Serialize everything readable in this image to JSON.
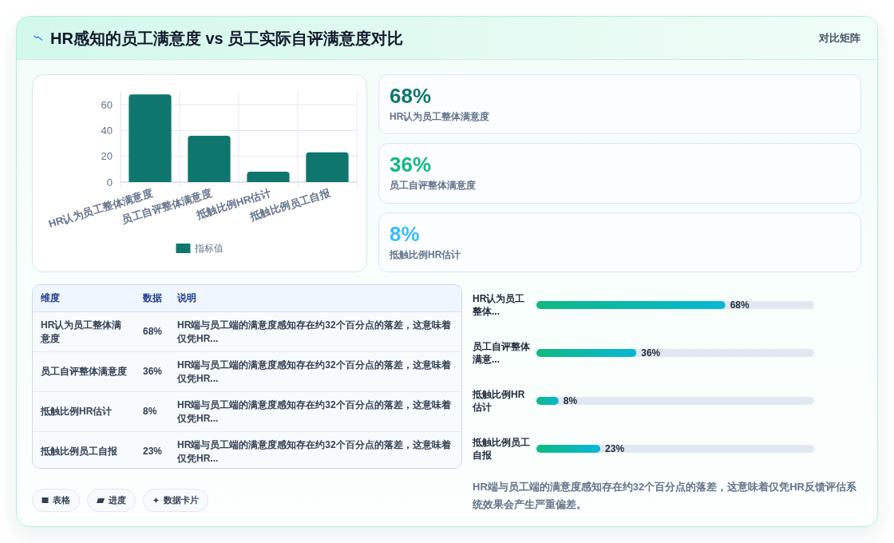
{
  "chart_data": [
    {
      "type": "other",
      "title": "HR感知的员工满意度 vs 员工实际自评满意度对比",
      "subtitle": "对比矩阵"
    },
    {
      "type": "bar",
      "categories": [
        "HR认为员工整体满意度",
        "员工自评整体满意度",
        "抵触比例HR估计",
        "抵触比例员工自报"
      ],
      "series": [
        {
          "name": "指标值",
          "color": "#0f766e",
          "values": [
            68,
            36,
            8,
            23
          ]
        }
      ],
      "ylim": [
        0,
        70
      ],
      "yticks": [
        0,
        20,
        40,
        60
      ],
      "grid": true,
      "legend": "bottom"
    },
    {
      "type": "other",
      "categories": [
        "HR认为员工整体满意度",
        "员工自评整体满意度",
        "抵触比例HR估计"
      ],
      "value_labels": [
        "68%",
        "36%",
        "8%"
      ]
    },
    {
      "type": "other",
      "categories": [
        "HR认为员工整体满意度",
        "员工自评整体满意度",
        "抵触比例HR估计",
        "抵触比例员工自报"
      ],
      "value_labels": [
        "68%",
        "36%",
        "8%",
        "23%"
      ],
      "annotations": [
        "维度",
        "数据",
        "说明",
        "HR端与员工端的满意度感知存在约32个百分点的落差，这意味着仅凭HR...",
        "HR端与员工端的满意度感知存在约32个百分点的落差，这意味着仅凭HR...",
        "HR端与员工端的满意度感知存在约32个百分点的落差，这意味着仅凭HR...",
        "HR端与员工端的满意度感知存在约32个百分点的落差，这意味着仅凭HR..."
      ]
    },
    {
      "type": "bar",
      "orientation": "horizontal",
      "categories": [
        "HR认为员工整体...",
        "员工自评整体满意...",
        "抵触比例HR估计",
        "抵触比例员工自报"
      ],
      "values": [
        68,
        36,
        8,
        23
      ],
      "value_labels": [
        "68%",
        "36%",
        "8%",
        "23%"
      ],
      "color": "#10b981",
      "xlim": [
        0,
        100
      ],
      "tick_labels": "y",
      "annotations": [
        "HR端与员工端的满意度感知存在约32个百分点的落差，这意味着仅凭HR反馈评估系统效果会产生严重偏差。"
      ]
    },
    {
      "type": "other",
      "annotations": [
        "表格",
        "进度",
        "数据卡片"
      ]
    }
  ]
}
